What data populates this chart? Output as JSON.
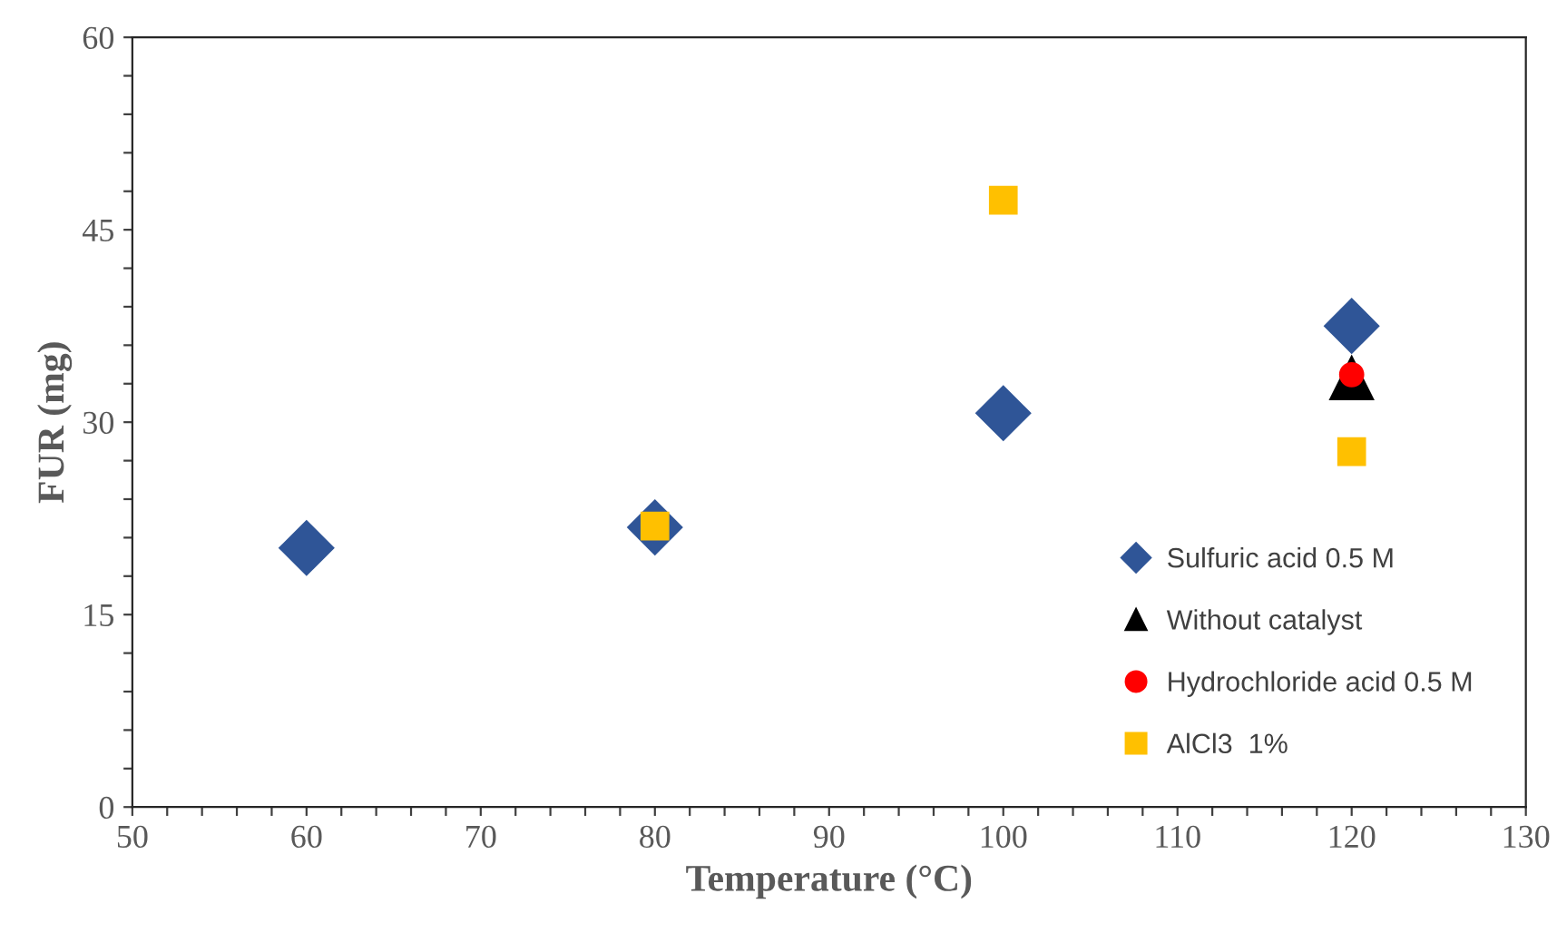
{
  "chart_data": {
    "type": "scatter",
    "xlabel": "Temperature (°C)",
    "ylabel": "FUR (mg)",
    "xlim": [
      50,
      130
    ],
    "ylim": [
      0,
      60
    ],
    "xticks": [
      50,
      {
        "value": 52,
        "label": null
      },
      {
        "value": 54,
        "label": null
      },
      {
        "value": 56,
        "label": null
      },
      {
        "value": 58,
        "label": null
      },
      60,
      {
        "value": 62,
        "label": null
      },
      {
        "value": 64,
        "label": null
      },
      {
        "value": 66,
        "label": null
      },
      {
        "value": 68,
        "label": null
      },
      70,
      {
        "value": 72,
        "label": null
      },
      {
        "value": 74,
        "label": null
      },
      {
        "value": 76,
        "label": null
      },
      {
        "value": 78,
        "label": null
      },
      80,
      {
        "value": 82,
        "label": null
      },
      {
        "value": 84,
        "label": null
      },
      {
        "value": 86,
        "label": null
      },
      {
        "value": 88,
        "label": null
      },
      90,
      {
        "value": 92,
        "label": null
      },
      {
        "value": 94,
        "label": null
      },
      {
        "value": 96,
        "label": null
      },
      {
        "value": 98,
        "label": null
      },
      100,
      {
        "value": 102,
        "label": null
      },
      {
        "value": 104,
        "label": null
      },
      {
        "value": 106,
        "label": null
      },
      {
        "value": 108,
        "label": null
      },
      110,
      {
        "value": 112,
        "label": null
      },
      {
        "value": 114,
        "label": null
      },
      {
        "value": 116,
        "label": null
      },
      {
        "value": 118,
        "label": null
      },
      120,
      {
        "value": 122,
        "label": null
      },
      {
        "value": 124,
        "label": null
      },
      {
        "value": 126,
        "label": null
      },
      {
        "value": 128,
        "label": null
      },
      130
    ],
    "yticks": [
      0,
      {
        "value": 3,
        "label": null
      },
      {
        "value": 6,
        "label": null
      },
      {
        "value": 9,
        "label": null
      },
      {
        "value": 12,
        "label": null
      },
      15,
      {
        "value": 18,
        "label": null
      },
      {
        "value": 21,
        "label": null
      },
      {
        "value": 24,
        "label": null
      },
      {
        "value": 27,
        "label": null
      },
      30,
      {
        "value": 33,
        "label": null
      },
      {
        "value": 36,
        "label": null
      },
      {
        "value": 39,
        "label": null
      },
      {
        "value": 42,
        "label": null
      },
      45,
      {
        "value": 48,
        "label": null
      },
      {
        "value": 51,
        "label": null
      },
      {
        "value": 54,
        "label": null
      },
      {
        "value": 57,
        "label": null
      },
      60
    ],
    "grid": false,
    "legend": "right",
    "series": [
      {
        "name": "Sulfuric acid 0.5 M",
        "color": "#2f5597",
        "marker": "diamond",
        "x": [
          60,
          80,
          100,
          120
        ],
        "values": [
          20.2,
          21.8,
          30.7,
          37.5
        ]
      },
      {
        "name": "Without catalyst",
        "color": "#000000",
        "marker": "triangle",
        "x": [
          120
        ],
        "values": [
          33.5
        ]
      },
      {
        "name": "Hydrochloride acid 0.5 M",
        "color": "#ff0000",
        "marker": "circle",
        "x": [
          120
        ],
        "values": [
          33.7
        ]
      },
      {
        "name": "AlCl3  1%",
        "color": "#ffc000",
        "marker": "square",
        "x": [
          80,
          100,
          120
        ],
        "values": [
          21.9,
          47.3,
          27.7
        ]
      }
    ]
  }
}
